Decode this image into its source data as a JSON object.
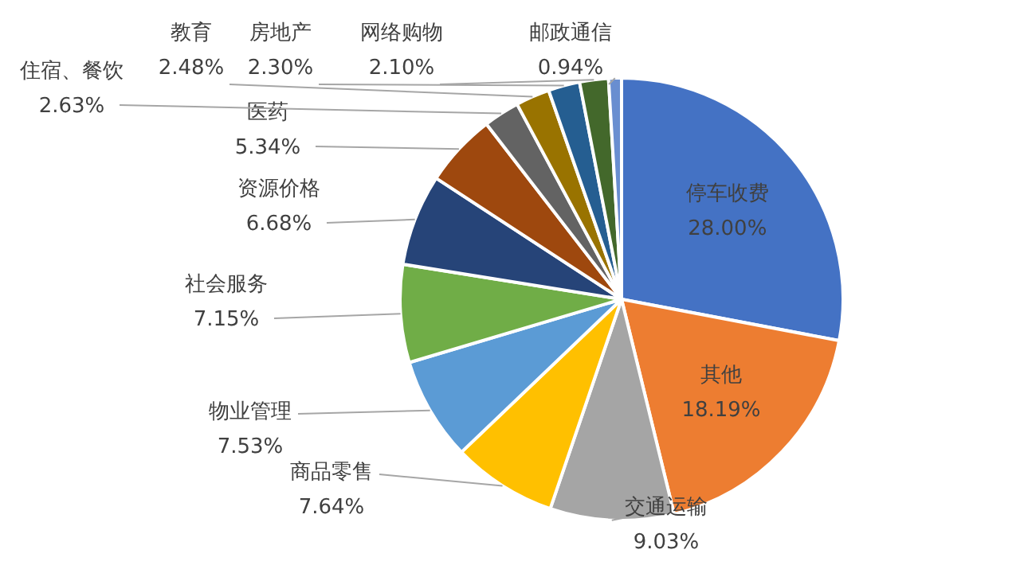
{
  "chart_data": {
    "type": "pie",
    "categories": [
      "停车收费",
      "其他",
      "交通运输",
      "商品零售",
      "物业管理",
      "社会服务",
      "资源价格",
      "医药",
      "住宿、餐饮",
      "教育",
      "房地产",
      "网络购物",
      "邮政通信"
    ],
    "values": [
      28.0,
      18.19,
      9.03,
      7.64,
      7.53,
      7.15,
      6.68,
      5.34,
      2.63,
      2.48,
      2.3,
      2.1,
      0.94
    ],
    "value_labels": [
      "28.00%",
      "18.19%",
      "9.03%",
      "7.64%",
      "7.53%",
      "7.15%",
      "6.68%",
      "5.34%",
      "2.63%",
      "2.48%",
      "2.30%",
      "2.10%",
      "0.94%"
    ],
    "colors": [
      "#4472c4",
      "#ed7d31",
      "#a5a5a5",
      "#ffc000",
      "#5b9bd5",
      "#70ad47",
      "#264478",
      "#9e480e",
      "#636363",
      "#997300",
      "#255e91",
      "#43682b",
      "#698ed0"
    ],
    "legend": false
  }
}
